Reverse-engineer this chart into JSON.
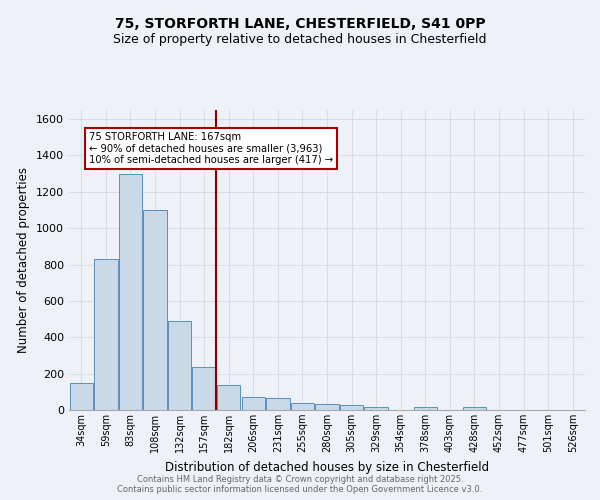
{
  "title1": "75, STORFORTH LANE, CHESTERFIELD, S41 0PP",
  "title2": "Size of property relative to detached houses in Chesterfield",
  "xlabel": "Distribution of detached houses by size in Chesterfield",
  "ylabel": "Number of detached properties",
  "categories": [
    "34sqm",
    "59sqm",
    "83sqm",
    "108sqm",
    "132sqm",
    "157sqm",
    "182sqm",
    "206sqm",
    "231sqm",
    "255sqm",
    "280sqm",
    "305sqm",
    "329sqm",
    "354sqm",
    "378sqm",
    "403sqm",
    "428sqm",
    "452sqm",
    "477sqm",
    "501sqm",
    "526sqm"
  ],
  "values": [
    150,
    830,
    1300,
    1100,
    490,
    235,
    135,
    70,
    68,
    40,
    35,
    25,
    15,
    0,
    15,
    0,
    15,
    0,
    0,
    0,
    0
  ],
  "bar_color": "#c9d9e8",
  "bar_edge_color": "#5a8fc0",
  "annotation_text": "75 STORFORTH LANE: 167sqm\n← 90% of detached houses are smaller (3,963)\n10% of semi-detached houses are larger (417) →",
  "annotation_box_color": "#ffffff",
  "annotation_box_edge": "#aa0000",
  "vline_color": "#880000",
  "ylim": [
    0,
    1650
  ],
  "yticks": [
    0,
    200,
    400,
    600,
    800,
    1000,
    1200,
    1400,
    1600
  ],
  "footer_text": "Contains HM Land Registry data © Crown copyright and database right 2025.\nContains public sector information licensed under the Open Government Licence v3.0.",
  "bg_color": "#eef2f8",
  "plot_bg_color": "#eef2f8",
  "grid_color": "#d8dde8",
  "title_fontsize": 10,
  "subtitle_fontsize": 9
}
